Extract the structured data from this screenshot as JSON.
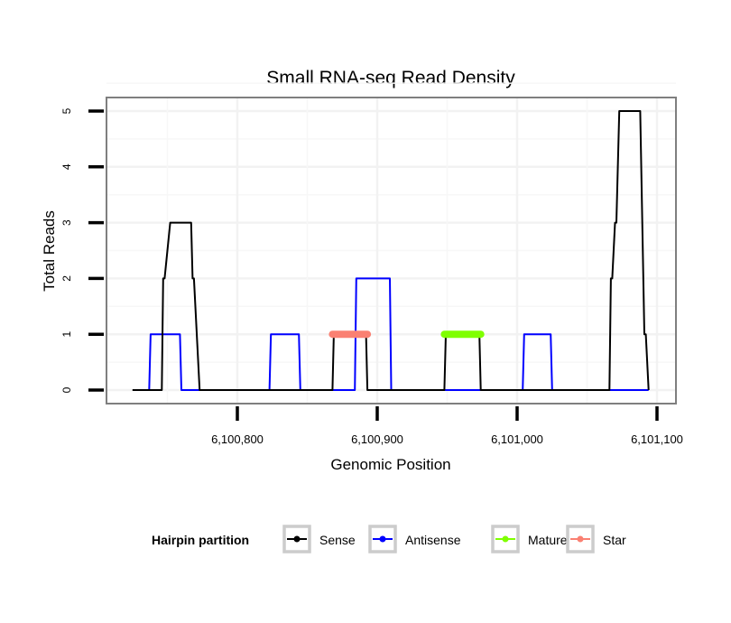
{
  "chart_data": {
    "type": "line",
    "title": "Small RNA-seq Read Density",
    "xlabel": "Genomic Position",
    "ylabel": "Total Reads",
    "xlim": [
      6100690,
      6101104
    ],
    "ylim": [
      -0.25,
      5.25
    ],
    "x_ticks": [
      6100800,
      6100900,
      6101000,
      6101100
    ],
    "x_tick_labels": [
      "6,100,800",
      "6,100,900",
      "6,101,000",
      "6,101,100"
    ],
    "y_ticks": [
      0,
      1,
      2,
      3,
      4,
      5
    ],
    "y_tick_labels": [
      "0",
      "1",
      "2",
      "3",
      "4",
      "5"
    ],
    "grid": true,
    "legend": {
      "title": "Hairpin partition",
      "position": "bottom",
      "entries": [
        {
          "name": "Sense",
          "color": "#000000"
        },
        {
          "name": "Antisense",
          "color": "#0000ff"
        },
        {
          "name": "Mature",
          "color": "#7fff00"
        },
        {
          "name": "Star",
          "color": "#fa8072"
        }
      ]
    },
    "series": [
      {
        "name": "Sense",
        "color": "#000000",
        "points": [
          [
            6100725,
            0
          ],
          [
            6100746,
            0
          ],
          [
            6100747,
            2
          ],
          [
            6100748,
            2
          ],
          [
            6100752,
            3
          ],
          [
            6100767,
            3
          ],
          [
            6100768,
            2
          ],
          [
            6100769,
            2
          ],
          [
            6100773,
            0
          ],
          [
            6100868,
            0
          ],
          [
            6100869,
            1
          ],
          [
            6100892,
            1
          ],
          [
            6100893,
            0
          ],
          [
            6100948,
            0
          ],
          [
            6100949,
            1
          ],
          [
            6100973,
            1
          ],
          [
            6100974,
            0
          ],
          [
            6101066,
            0
          ],
          [
            6101067,
            2
          ],
          [
            6101068,
            2
          ],
          [
            6101070,
            3
          ],
          [
            6101071,
            3
          ],
          [
            6101073,
            5
          ],
          [
            6101088,
            5
          ],
          [
            6101091,
            1
          ],
          [
            6101092,
            1
          ],
          [
            6101094,
            0
          ]
        ]
      },
      {
        "name": "Antisense",
        "color": "#0000ff",
        "points": [
          [
            6100737,
            0
          ],
          [
            6100738,
            1
          ],
          [
            6100759,
            1
          ],
          [
            6100760,
            0
          ],
          [
            6100823,
            0
          ],
          [
            6100824,
            1
          ],
          [
            6100844,
            1
          ],
          [
            6100845,
            0
          ],
          [
            6100884,
            0
          ],
          [
            6100885,
            2
          ],
          [
            6100909,
            2
          ],
          [
            6100910,
            0
          ],
          [
            6101004,
            0
          ],
          [
            6101005,
            1
          ],
          [
            6101024,
            1
          ],
          [
            6101025,
            0
          ],
          [
            6101094,
            0
          ]
        ]
      },
      {
        "name": "Mature",
        "color": "#7fff00",
        "points": [
          [
            6100948,
            1
          ],
          [
            6100974,
            1
          ]
        ]
      },
      {
        "name": "Star",
        "color": "#fa8072",
        "points": [
          [
            6100868,
            1
          ],
          [
            6100893,
            1
          ]
        ]
      }
    ]
  }
}
